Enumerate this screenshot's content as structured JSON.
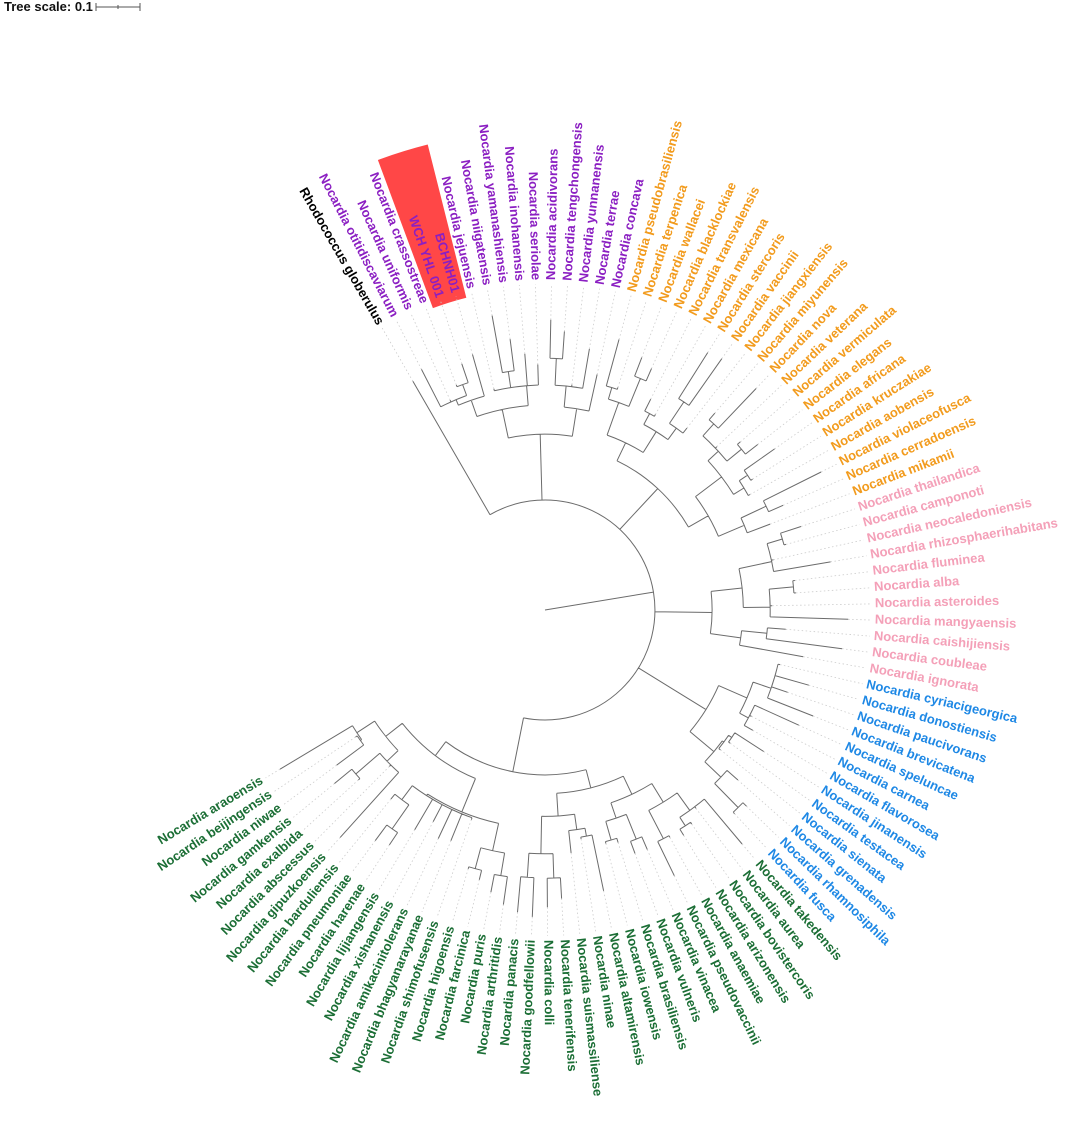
{
  "scale": {
    "label": "Tree scale: 0.1"
  },
  "colors": {
    "outgroup": "#000000",
    "purple": "#8b1fc2",
    "orange": "#f29b1d",
    "pink": "#f4a0b8",
    "blue": "#1e88e5",
    "green": "#1b6e35",
    "highlight": "#ff4747",
    "branch": "#6b6b6b",
    "guide": "#cccccc"
  },
  "highlight": {
    "labels": [
      "BCHNH01",
      "WCH YHL 001"
    ],
    "highlight_color": "#ff4747",
    "text_color": "#8b1fc2"
  },
  "leaves": [
    {
      "label": "Rhodococcus globerulus",
      "clade": "outgroup"
    },
    {
      "label": "Nocardia otitidiscaviarum",
      "clade": "purple"
    },
    {
      "label": "Nocardia uniformis",
      "clade": "purple"
    },
    {
      "label": "Nocardia crassostreae",
      "clade": "purple"
    },
    {
      "label": "WCH YHL 001",
      "clade": "purple"
    },
    {
      "label": "BCHNH01",
      "clade": "purple"
    },
    {
      "label": "Nocardia jejuensis",
      "clade": "purple"
    },
    {
      "label": "Nocardia niigatensis",
      "clade": "purple"
    },
    {
      "label": "Nocardia yamanashiensis",
      "clade": "purple"
    },
    {
      "label": "Nocardia inohanensis",
      "clade": "purple"
    },
    {
      "label": "Nocardia seriolae",
      "clade": "purple"
    },
    {
      "label": "Nocardia acidivorans",
      "clade": "purple"
    },
    {
      "label": "Nocardia tengchongensis",
      "clade": "purple"
    },
    {
      "label": "Nocardia yunnanensis",
      "clade": "purple"
    },
    {
      "label": "Nocardia terrae",
      "clade": "purple"
    },
    {
      "label": "Nocardia concava",
      "clade": "purple"
    },
    {
      "label": "Nocardia pseudobrasiliensis",
      "clade": "orange"
    },
    {
      "label": "Nocardia terpenica",
      "clade": "orange"
    },
    {
      "label": "Nocardia wallacei",
      "clade": "orange"
    },
    {
      "label": "Nocardia blacklockiae",
      "clade": "orange"
    },
    {
      "label": "Nocardia transvalensis",
      "clade": "orange"
    },
    {
      "label": "Nocardia mexicana",
      "clade": "orange"
    },
    {
      "label": "Nocardia stercoris",
      "clade": "orange"
    },
    {
      "label": "Nocardia vaccinii",
      "clade": "orange"
    },
    {
      "label": "Nocardia jiangxiensis",
      "clade": "orange"
    },
    {
      "label": "Nocardia miyunensis",
      "clade": "orange"
    },
    {
      "label": "Nocardia nova",
      "clade": "orange"
    },
    {
      "label": "Nocardia veterana",
      "clade": "orange"
    },
    {
      "label": "Nocardia vermiculata",
      "clade": "orange"
    },
    {
      "label": "Nocardia elegans",
      "clade": "orange"
    },
    {
      "label": "Nocardia africana",
      "clade": "orange"
    },
    {
      "label": "Nocardia kruczakiae",
      "clade": "orange"
    },
    {
      "label": "Nocardia aobensis",
      "clade": "orange"
    },
    {
      "label": "Nocardia violaceofusca",
      "clade": "orange"
    },
    {
      "label": "Nocardia cerradoensis",
      "clade": "orange"
    },
    {
      "label": "Nocardia mikamii",
      "clade": "orange"
    },
    {
      "label": "Nocardia thailandica",
      "clade": "pink"
    },
    {
      "label": "Nocardia camponoti",
      "clade": "pink"
    },
    {
      "label": "Nocardia neocaledoniensis",
      "clade": "pink"
    },
    {
      "label": "Nocardia rhizosphaerihabitans",
      "clade": "pink"
    },
    {
      "label": "Nocardia fluminea",
      "clade": "pink"
    },
    {
      "label": "Nocardia alba",
      "clade": "pink"
    },
    {
      "label": "Nocardia asteroides",
      "clade": "pink"
    },
    {
      "label": "Nocardia mangyaensis",
      "clade": "pink"
    },
    {
      "label": "Nocardia caishijiensis",
      "clade": "pink"
    },
    {
      "label": "Nocardia coubleae",
      "clade": "pink"
    },
    {
      "label": "Nocardia ignorata",
      "clade": "pink"
    },
    {
      "label": "Nocardia cyriacigeorgica",
      "clade": "blue"
    },
    {
      "label": "Nocardia donostiensis",
      "clade": "blue"
    },
    {
      "label": "Nocardia paucivorans",
      "clade": "blue"
    },
    {
      "label": "Nocardia brevicatena",
      "clade": "blue"
    },
    {
      "label": "Nocardia speluncae",
      "clade": "blue"
    },
    {
      "label": "Nocardia carnea",
      "clade": "blue"
    },
    {
      "label": "Nocardia flavorosea",
      "clade": "blue"
    },
    {
      "label": "Nocardia jinanensis",
      "clade": "blue"
    },
    {
      "label": "Nocardia testacea",
      "clade": "blue"
    },
    {
      "label": "Nocardia sienata",
      "clade": "blue"
    },
    {
      "label": "Nocardia grenadensis",
      "clade": "blue"
    },
    {
      "label": "Nocardia rhamnosiphila",
      "clade": "blue"
    },
    {
      "label": "Nocardia fusca",
      "clade": "blue"
    },
    {
      "label": "Nocardia takedensis",
      "clade": "green"
    },
    {
      "label": "Nocardia aurea",
      "clade": "green"
    },
    {
      "label": "Nocardia bovistercoris",
      "clade": "green"
    },
    {
      "label": "Nocardia arizonensis",
      "clade": "green"
    },
    {
      "label": "Nocardia anaemiae",
      "clade": "green"
    },
    {
      "label": "Nocardia pseudovaccinii",
      "clade": "green"
    },
    {
      "label": "Nocardia vinacea",
      "clade": "green"
    },
    {
      "label": "Nocardia vulneris",
      "clade": "green"
    },
    {
      "label": "Nocardia brasiliensis",
      "clade": "green"
    },
    {
      "label": "Nocardia iowensis",
      "clade": "green"
    },
    {
      "label": "Nocardia altamirensis",
      "clade": "green"
    },
    {
      "label": "Nocardia ninae",
      "clade": "green"
    },
    {
      "label": "Nocardia suismassiliense",
      "clade": "green"
    },
    {
      "label": "Nocardia tenerifensis",
      "clade": "green"
    },
    {
      "label": "Nocardia colli",
      "clade": "green"
    },
    {
      "label": "Nocardia goodfellowii",
      "clade": "green"
    },
    {
      "label": "Nocardia panacis",
      "clade": "green"
    },
    {
      "label": "Nocardia arthritidis",
      "clade": "green"
    },
    {
      "label": "Nocardia puris",
      "clade": "green"
    },
    {
      "label": "Nocardia farcinica",
      "clade": "green"
    },
    {
      "label": "Nocardia higoensis",
      "clade": "green"
    },
    {
      "label": "Nocardia shimofusensis",
      "clade": "green"
    },
    {
      "label": "Nocardia bhagyanarayanae",
      "clade": "green"
    },
    {
      "label": "Nocardia amikacinitolerans",
      "clade": "green"
    },
    {
      "label": "Nocardia xishanensis",
      "clade": "green"
    },
    {
      "label": "Nocardia lijiangensis",
      "clade": "green"
    },
    {
      "label": "Nocardia harenae",
      "clade": "green"
    },
    {
      "label": "Nocardia pneumoniae",
      "clade": "green"
    },
    {
      "label": "Nocardia barduliensis",
      "clade": "green"
    },
    {
      "label": "Nocardia gipuzkoensis",
      "clade": "green"
    },
    {
      "label": "Nocardia abscessus",
      "clade": "green"
    },
    {
      "label": "Nocardia exalbida",
      "clade": "green"
    },
    {
      "label": "Nocardia gamkensis",
      "clade": "green"
    },
    {
      "label": "Nocardia niwae",
      "clade": "green"
    },
    {
      "label": "Nocardia beijingensis",
      "clade": "green"
    },
    {
      "label": "Nocardia araoensis",
      "clade": "green"
    }
  ]
}
